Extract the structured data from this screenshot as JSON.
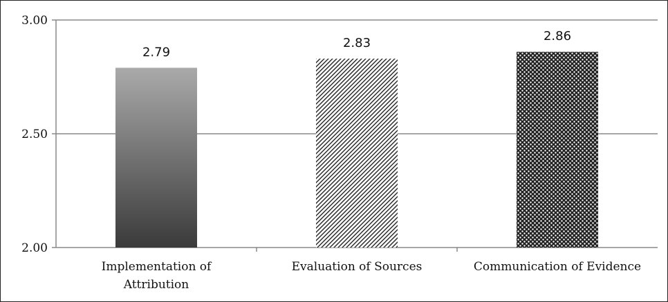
{
  "chart_data": {
    "type": "bar",
    "title": "",
    "xlabel": "",
    "ylabel": "",
    "categories": [
      [
        "Implementation of",
        "Attribution"
      ],
      [
        "Evaluation of Sources"
      ],
      [
        "Communication of Evidence"
      ]
    ],
    "values": [
      2.79,
      2.83,
      2.86
    ],
    "data_labels": [
      "2.79",
      "2.83",
      "2.86"
    ],
    "ylim": [
      2.0,
      3.0
    ],
    "y_ticks": [
      2.0,
      2.5,
      3.0
    ],
    "y_tick_labels": [
      "2.00",
      "2.50",
      "3.00"
    ],
    "grid": true,
    "legend": "none",
    "bar_styles": [
      "gradient",
      "diagonal-hatch",
      "dotted"
    ],
    "colors": {
      "axis": "#888888",
      "grid": "#888888",
      "gradient_top": "#aaaaaa",
      "gradient_bottom": "#3a3a3a",
      "pattern_ink": "#222222",
      "pattern_paper": "#ffffff"
    }
  }
}
